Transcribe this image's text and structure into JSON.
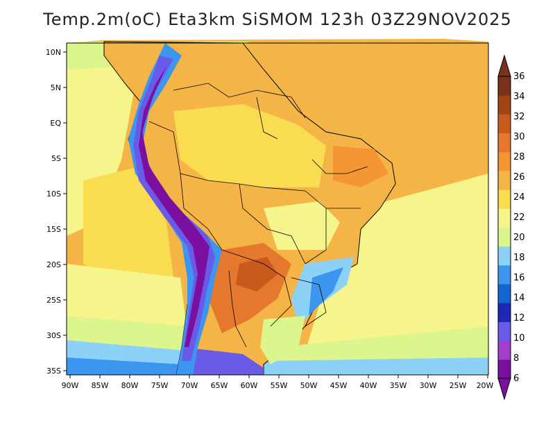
{
  "title": "Temp.2m(oC) Eta3km SiSMOM 123h 03Z29NOV2025",
  "map": {
    "variable": "2 m temperature",
    "units": "oC",
    "region": "South America",
    "lat_labels": [
      "10N",
      "5N",
      "EQ",
      "5S",
      "10S",
      "15S",
      "20S",
      "25S",
      "30S",
      "35S"
    ],
    "lon_labels": [
      "90W",
      "85W",
      "80W",
      "75W",
      "70W",
      "65W",
      "60W",
      "55W",
      "50W",
      "45W",
      "40W",
      "35W",
      "30W",
      "25W",
      "20W"
    ]
  },
  "colorbar": {
    "labels": [
      "6",
      "8",
      "10",
      "12",
      "14",
      "16",
      "18",
      "20",
      "22",
      "24",
      "26",
      "28",
      "30",
      "32",
      "34",
      "36"
    ],
    "colors": [
      "#7a0fa0",
      "#a040c8",
      "#6a5ae8",
      "#1e28b4",
      "#1464d2",
      "#3c96f0",
      "#8cd2f8",
      "#dcf58c",
      "#f5f58c",
      "#fadc50",
      "#f5b446",
      "#f59632",
      "#e6782d",
      "#c85a1e",
      "#a04614",
      "#78321e"
    ]
  }
}
